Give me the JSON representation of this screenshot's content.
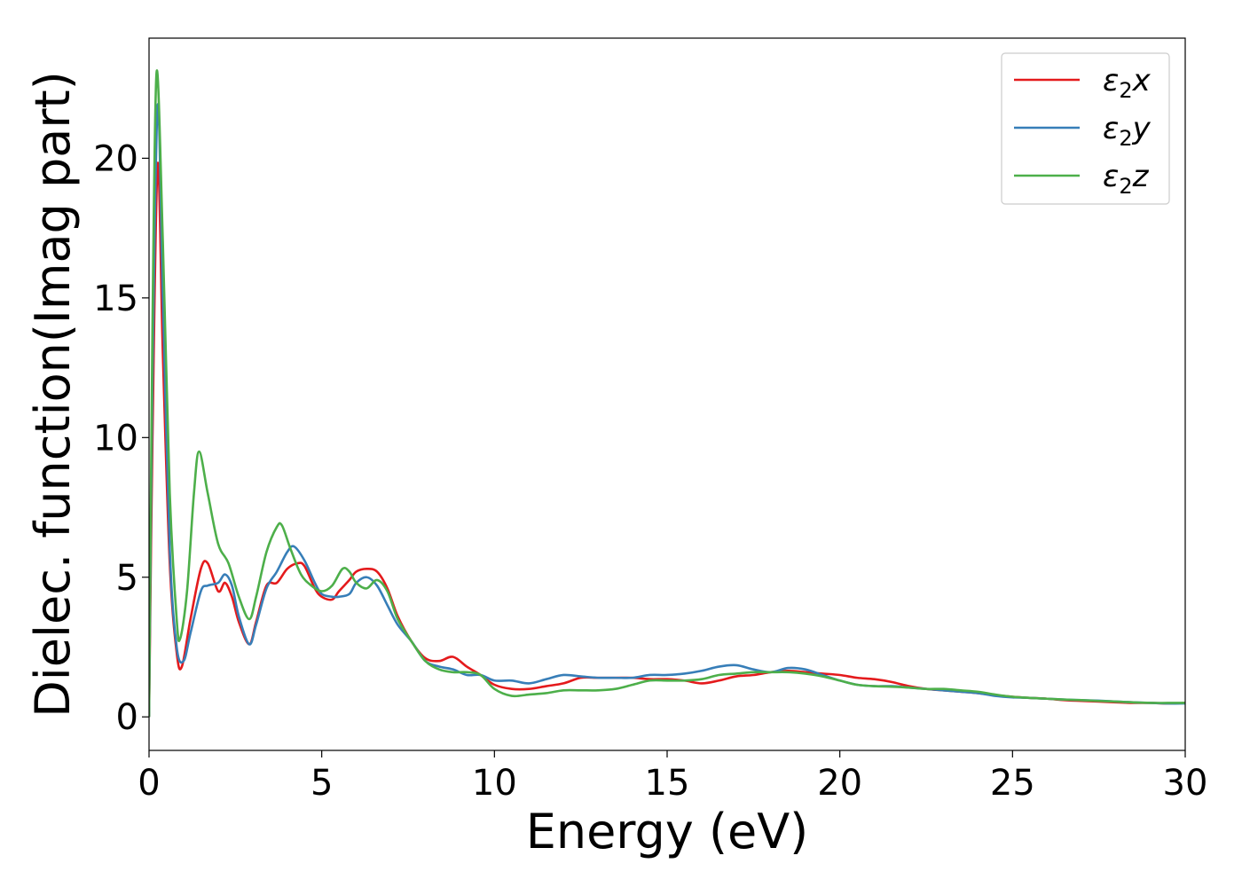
{
  "chart_data": {
    "type": "line",
    "xlabel": "Energy (eV)",
    "ylabel": "Dielec. function(Imag part)",
    "xlim": [
      0,
      30
    ],
    "ylim": [
      -1.2,
      24.3
    ],
    "xticks": [
      0,
      5,
      10,
      15,
      20,
      25,
      30
    ],
    "yticks": [
      0,
      5,
      10,
      15,
      20
    ],
    "grid": false,
    "legend_position": "top-right",
    "series": [
      {
        "name": "ε2x",
        "legend": {
          "base": "ε",
          "sub": "2",
          "axis": "x"
        },
        "color": "#e41a1c",
        "x": [
          0,
          0.1,
          0.25,
          0.4,
          0.6,
          0.8,
          0.95,
          1.2,
          1.5,
          1.7,
          2.0,
          2.2,
          2.4,
          2.6,
          2.9,
          3.1,
          3.4,
          3.7,
          4.0,
          4.3,
          4.5,
          4.8,
          5.0,
          5.3,
          5.5,
          5.8,
          6.0,
          6.3,
          6.6,
          6.9,
          7.2,
          7.6,
          8.0,
          8.4,
          8.8,
          9.2,
          9.6,
          10.0,
          10.5,
          11.0,
          11.5,
          12.0,
          12.5,
          13.0,
          13.5,
          14.0,
          14.5,
          15.0,
          15.5,
          16.0,
          16.5,
          17.0,
          17.5,
          18.0,
          18.5,
          19.0,
          19.5,
          20.0,
          20.5,
          21.0,
          21.5,
          22.0,
          22.5,
          23.0,
          23.5,
          24.0,
          24.5,
          25.0,
          25.5,
          26.0,
          26.5,
          27.0,
          27.5,
          28.0,
          28.5,
          29.0,
          29.5,
          30.0
        ],
        "values": [
          0,
          10.0,
          19.8,
          13.0,
          5.5,
          2.3,
          1.8,
          3.5,
          5.3,
          5.5,
          4.5,
          4.8,
          4.3,
          3.4,
          2.6,
          3.4,
          4.7,
          4.8,
          5.3,
          5.5,
          5.4,
          4.6,
          4.3,
          4.2,
          4.5,
          4.9,
          5.2,
          5.3,
          5.2,
          4.6,
          3.6,
          2.7,
          2.1,
          2.0,
          2.15,
          1.8,
          1.5,
          1.15,
          1.0,
          1.0,
          1.1,
          1.2,
          1.4,
          1.4,
          1.4,
          1.4,
          1.35,
          1.35,
          1.3,
          1.2,
          1.3,
          1.45,
          1.5,
          1.6,
          1.65,
          1.6,
          1.55,
          1.5,
          1.4,
          1.35,
          1.25,
          1.1,
          1.0,
          0.95,
          0.9,
          0.85,
          0.78,
          0.72,
          0.68,
          0.65,
          0.6,
          0.57,
          0.55,
          0.52,
          0.5,
          0.5,
          0.48,
          0.5
        ]
      },
      {
        "name": "ε2y",
        "legend": {
          "base": "ε",
          "sub": "2",
          "axis": "y"
        },
        "color": "#377eb8",
        "x": [
          0,
          0.1,
          0.25,
          0.4,
          0.6,
          0.8,
          1.0,
          1.2,
          1.5,
          1.7,
          2.0,
          2.2,
          2.4,
          2.6,
          2.9,
          3.1,
          3.4,
          3.7,
          4.0,
          4.2,
          4.5,
          4.8,
          5.0,
          5.3,
          5.5,
          5.8,
          6.0,
          6.3,
          6.6,
          6.9,
          7.2,
          7.6,
          8.0,
          8.4,
          8.8,
          9.2,
          9.6,
          10.0,
          10.5,
          11.0,
          11.5,
          12.0,
          12.5,
          13.0,
          13.5,
          14.0,
          14.5,
          15.0,
          15.5,
          16.0,
          16.5,
          17.0,
          17.5,
          18.0,
          18.5,
          19.0,
          19.5,
          20.0,
          20.5,
          21.0,
          21.5,
          22.0,
          22.5,
          23.0,
          23.5,
          24.0,
          24.5,
          25.0,
          25.5,
          26.0,
          26.5,
          27.0,
          27.5,
          28.0,
          28.5,
          29.0,
          29.5,
          30.0
        ],
        "values": [
          0,
          12.0,
          21.9,
          15.0,
          6.0,
          2.5,
          2.0,
          3.0,
          4.5,
          4.7,
          4.8,
          5.1,
          4.7,
          3.6,
          2.6,
          3.3,
          4.6,
          5.2,
          5.9,
          6.1,
          5.6,
          4.8,
          4.4,
          4.3,
          4.3,
          4.4,
          4.8,
          5.0,
          4.7,
          4.0,
          3.3,
          2.7,
          2.0,
          1.8,
          1.7,
          1.5,
          1.5,
          1.3,
          1.3,
          1.2,
          1.35,
          1.5,
          1.45,
          1.4,
          1.4,
          1.4,
          1.5,
          1.5,
          1.55,
          1.65,
          1.8,
          1.85,
          1.7,
          1.6,
          1.75,
          1.7,
          1.5,
          1.3,
          1.15,
          1.1,
          1.1,
          1.05,
          1.0,
          0.95,
          0.9,
          0.85,
          0.75,
          0.7,
          0.68,
          0.65,
          0.62,
          0.6,
          0.58,
          0.55,
          0.52,
          0.5,
          0.48,
          0.48
        ]
      },
      {
        "name": "ε2z",
        "legend": {
          "base": "ε",
          "sub": "2",
          "axis": "z"
        },
        "color": "#4daf4a",
        "x": [
          0,
          0.1,
          0.22,
          0.4,
          0.6,
          0.8,
          0.9,
          1.1,
          1.3,
          1.45,
          1.7,
          2.0,
          2.3,
          2.6,
          2.9,
          3.1,
          3.4,
          3.7,
          3.85,
          4.1,
          4.4,
          4.7,
          5.0,
          5.3,
          5.6,
          5.8,
          6.0,
          6.3,
          6.6,
          6.9,
          7.2,
          7.6,
          8.0,
          8.4,
          8.8,
          9.2,
          9.6,
          10.0,
          10.5,
          11.0,
          11.5,
          12.0,
          12.5,
          13.0,
          13.5,
          14.0,
          14.5,
          15.0,
          15.5,
          16.0,
          16.5,
          17.0,
          17.5,
          18.0,
          18.5,
          19.0,
          19.5,
          20.0,
          20.5,
          21.0,
          21.5,
          22.0,
          22.5,
          23.0,
          23.5,
          24.0,
          24.5,
          25.0,
          25.5,
          26.0,
          26.5,
          27.0,
          27.5,
          28.0,
          28.5,
          29.0,
          29.5,
          30.0
        ],
        "values": [
          0,
          14.0,
          23.1,
          17.0,
          8.0,
          3.5,
          2.8,
          4.5,
          8.0,
          9.5,
          8.0,
          6.2,
          5.5,
          4.3,
          3.5,
          4.3,
          5.9,
          6.8,
          6.85,
          6.0,
          5.1,
          4.7,
          4.5,
          4.7,
          5.3,
          5.2,
          4.8,
          4.6,
          4.9,
          4.5,
          3.5,
          2.7,
          2.0,
          1.7,
          1.6,
          1.6,
          1.5,
          1.0,
          0.75,
          0.8,
          0.85,
          0.95,
          0.95,
          0.95,
          1.0,
          1.15,
          1.3,
          1.3,
          1.3,
          1.35,
          1.5,
          1.55,
          1.6,
          1.6,
          1.6,
          1.55,
          1.45,
          1.3,
          1.15,
          1.1,
          1.08,
          1.05,
          1.0,
          1.0,
          0.95,
          0.9,
          0.8,
          0.72,
          0.68,
          0.65,
          0.62,
          0.6,
          0.57,
          0.55,
          0.52,
          0.5,
          0.5,
          0.5
        ]
      }
    ]
  }
}
